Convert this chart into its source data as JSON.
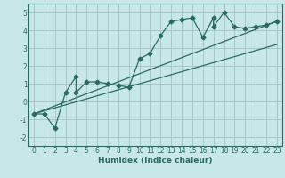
{
  "xlabel": "Humidex (Indice chaleur)",
  "ylabel": "",
  "bg_color": "#c8e8e8",
  "grid_color": "#a8c8c8",
  "line_color": "#2a6a60",
  "spine_color": "#2a6a60",
  "xlim": [
    -0.5,
    23.5
  ],
  "ylim": [
    -2.5,
    5.5
  ],
  "xticks": [
    0,
    1,
    2,
    3,
    4,
    5,
    6,
    7,
    8,
    9,
    10,
    11,
    12,
    13,
    14,
    15,
    16,
    17,
    18,
    19,
    20,
    21,
    22,
    23
  ],
  "yticks": [
    -2,
    -1,
    0,
    1,
    2,
    3,
    4,
    5
  ],
  "main_x": [
    0,
    1,
    2,
    3,
    4,
    4,
    5,
    6,
    7,
    8,
    9,
    10,
    11,
    12,
    13,
    14,
    15,
    16,
    17,
    17,
    18,
    19,
    20,
    21,
    22,
    23
  ],
  "main_y": [
    -0.7,
    -0.7,
    -1.5,
    0.5,
    1.4,
    0.5,
    1.1,
    1.1,
    1.0,
    0.9,
    0.8,
    2.4,
    2.7,
    3.7,
    4.5,
    4.6,
    4.7,
    3.6,
    4.7,
    4.2,
    5.0,
    4.2,
    4.1,
    4.2,
    4.3,
    4.5
  ],
  "line1_x": [
    0,
    23
  ],
  "line1_y": [
    -0.7,
    4.5
  ],
  "line2_x": [
    0,
    23
  ],
  "line2_y": [
    -0.7,
    3.2
  ],
  "xlabel_fontsize": 6.5,
  "tick_fontsize": 5.5,
  "line_width": 0.9,
  "marker_size": 2.5
}
